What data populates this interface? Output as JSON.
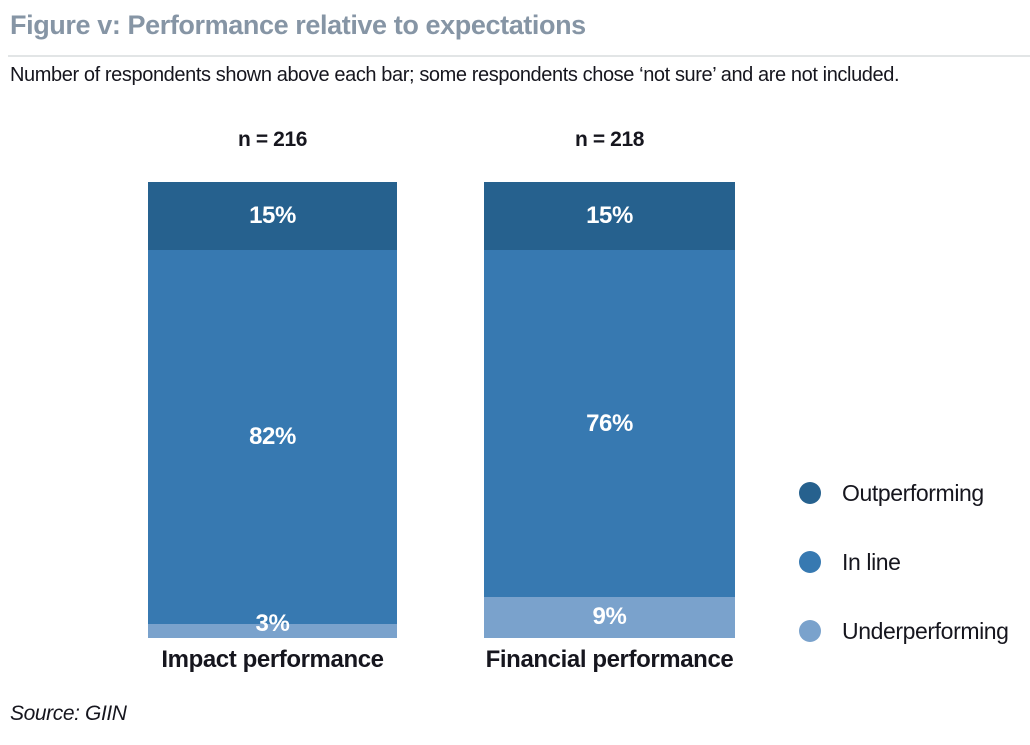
{
  "figure": {
    "title": "Figure v: Performance relative to expectations",
    "note": "Number of respondents shown above each bar; some respondents chose ‘not sure’ and are not included.",
    "source": "Source: GIIN"
  },
  "colors": {
    "title_text": "#8695A5",
    "body_text": "#16161E",
    "divider": "#E2E5E6",
    "outperforming": "#26618E",
    "in_line": "#3779B1",
    "underperforming": "#7AA2CC"
  },
  "chart_data": {
    "type": "bar",
    "stacked": true,
    "unit": "%",
    "title": "Figure v: Performance relative to expectations",
    "categories": [
      "Impact performance",
      "Financial performance"
    ],
    "n_labels": [
      "n = 216",
      "n = 218"
    ],
    "series": [
      {
        "name": "Outperforming",
        "color": "#26618E",
        "values": [
          15,
          15
        ]
      },
      {
        "name": "In line",
        "color": "#3779B1",
        "values": [
          82,
          76
        ]
      },
      {
        "name": "Underperforming",
        "color": "#7AA2CC",
        "values": [
          3,
          9
        ]
      }
    ],
    "legend_position": "right",
    "ylim": [
      0,
      100
    ],
    "grid": false
  }
}
